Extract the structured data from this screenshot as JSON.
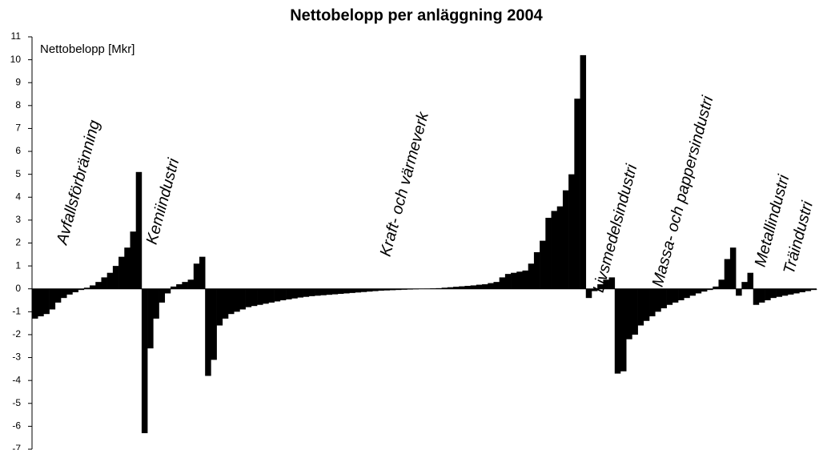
{
  "chart_data": {
    "type": "bar",
    "title": "Nettobelopp per anläggning 2004",
    "y_label": "Nettobelopp [Mkr]",
    "color": "#000000",
    "ylim": [
      -7,
      11
    ],
    "yticks": [
      -7,
      -6,
      -5,
      -4,
      -3,
      -2,
      -1,
      0,
      1,
      2,
      3,
      4,
      5,
      6,
      7,
      8,
      9,
      10,
      11
    ],
    "grid": false,
    "series": [
      {
        "name": "Avfallsförbränning",
        "values": [
          -1.3,
          -1.2,
          -1.1,
          -0.9,
          -0.6,
          -0.4,
          -0.25,
          -0.15,
          -0.05,
          0.05,
          0.15,
          0.3,
          0.5,
          0.7,
          1.0,
          1.4,
          1.8,
          2.5,
          5.1
        ]
      },
      {
        "name": "Kemiindustri",
        "values": [
          -6.3,
          -2.6,
          -1.3,
          -0.6,
          -0.2,
          0.1,
          0.2,
          0.3,
          0.4,
          1.1,
          1.4
        ]
      },
      {
        "name": "Kraft- och värmeverk",
        "values": [
          -3.8,
          -3.1,
          -1.6,
          -1.3,
          -1.1,
          -1.0,
          -0.9,
          -0.8,
          -0.75,
          -0.7,
          -0.65,
          -0.6,
          -0.55,
          -0.5,
          -0.46,
          -0.42,
          -0.38,
          -0.35,
          -0.32,
          -0.3,
          -0.28,
          -0.26,
          -0.24,
          -0.22,
          -0.2,
          -0.18,
          -0.16,
          -0.14,
          -0.12,
          -0.1,
          -0.08,
          -0.07,
          -0.06,
          -0.05,
          -0.04,
          -0.03,
          -0.02,
          -0.01,
          0.01,
          0.02,
          0.03,
          0.05,
          0.07,
          0.09,
          0.11,
          0.13,
          0.15,
          0.18,
          0.2,
          0.25,
          0.3,
          0.5,
          0.65,
          0.7,
          0.75,
          0.8,
          1.1,
          1.6,
          2.1,
          3.1,
          3.4,
          3.6,
          4.3,
          5.0,
          8.3,
          10.2
        ]
      },
      {
        "name": "Livsmedelsindustri",
        "values": [
          -0.4,
          -0.1,
          0.2,
          0.4,
          0.5
        ]
      },
      {
        "name": "Massa- och pappersindustri",
        "values": [
          -3.7,
          -3.6,
          -2.2,
          -2.0,
          -1.6,
          -1.4,
          -1.2,
          -1.0,
          -0.85,
          -0.7,
          -0.6,
          -0.5,
          -0.4,
          -0.3,
          -0.2,
          -0.12,
          -0.05,
          0.1,
          0.4,
          1.3,
          1.8
        ]
      },
      {
        "name": "Metallindustri",
        "values": [
          -0.3,
          0.3,
          0.7
        ]
      },
      {
        "name": "Träindustri",
        "values": [
          -0.7,
          -0.6,
          -0.5,
          -0.4,
          -0.35,
          -0.3,
          -0.25,
          -0.2,
          -0.15,
          -0.1,
          -0.05
        ]
      }
    ]
  }
}
